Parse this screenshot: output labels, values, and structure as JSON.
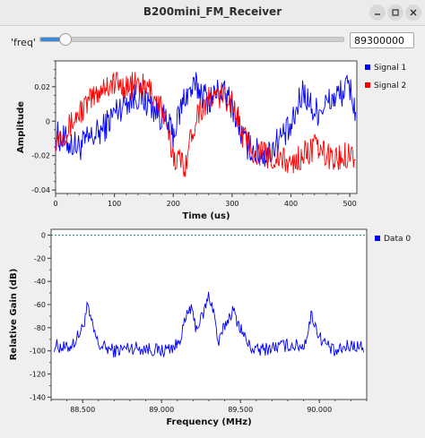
{
  "window": {
    "title": "B200mini_FM_Receiver",
    "buttons": {
      "minimize_icon": "minimize-icon",
      "maximize_icon": "maximize-icon",
      "close_icon": "close-icon"
    }
  },
  "controls": {
    "freq_label": "'freq'",
    "freq_value": "89300000",
    "slider_fraction": 0.08
  },
  "time_plot": {
    "chart_data": {
      "type": "line",
      "title": "",
      "xlabel": "Time (us)",
      "ylabel": "Amplitude",
      "xlim": [
        0,
        512
      ],
      "ylim": [
        -0.042,
        0.035
      ],
      "xticks": [
        0,
        100,
        200,
        300,
        400,
        500
      ],
      "yticks": [
        0.02,
        0,
        -0.02,
        -0.04
      ],
      "ytick_labels": [
        "0.02",
        "0",
        "-0.02",
        "-0.04"
      ],
      "legend_position": "right",
      "series": [
        {
          "name": "Signal 1",
          "color": "#0000ff",
          "x": [
            0,
            20,
            40,
            60,
            80,
            100,
            120,
            140,
            160,
            180,
            200,
            220,
            240,
            260,
            280,
            300,
            320,
            340,
            360,
            380,
            400,
            420,
            440,
            460,
            480,
            500,
            510
          ],
          "y": [
            -0.008,
            -0.012,
            -0.015,
            -0.01,
            -0.005,
            0.005,
            0.012,
            0.015,
            0.01,
            0.003,
            -0.008,
            0.015,
            0.02,
            0.012,
            0.018,
            0.01,
            -0.012,
            -0.018,
            -0.02,
            -0.01,
            -0.005,
            0.018,
            0.005,
            0.01,
            0.015,
            0.02,
            0.005
          ]
        },
        {
          "name": "Signal 2",
          "color": "#ff0000",
          "x": [
            0,
            20,
            40,
            60,
            80,
            100,
            120,
            140,
            160,
            180,
            200,
            220,
            240,
            260,
            280,
            300,
            320,
            340,
            360,
            380,
            400,
            420,
            440,
            460,
            480,
            500,
            510
          ],
          "y": [
            -0.01,
            -0.005,
            0.005,
            0.012,
            0.02,
            0.022,
            0.02,
            0.021,
            0.018,
            0.008,
            -0.02,
            -0.025,
            0.005,
            0.012,
            0.015,
            0.012,
            -0.01,
            -0.018,
            -0.02,
            -0.022,
            -0.025,
            -0.02,
            -0.015,
            -0.02,
            -0.022,
            -0.018,
            -0.02
          ]
        }
      ]
    }
  },
  "freq_plot": {
    "chart_data": {
      "type": "line",
      "title": "",
      "xlabel": "Frequency (MHz)",
      "ylabel": "Relative Gain (dB)",
      "xlim": [
        88.3,
        90.3
      ],
      "ylim": [
        -142,
        5
      ],
      "xticks": [
        88.5,
        89.0,
        89.5,
        90.0
      ],
      "xtick_labels": [
        "88.500",
        "89.000",
        "89.500",
        "90.000"
      ],
      "yticks": [
        0,
        -20,
        -40,
        -60,
        -80,
        -100,
        -120,
        -140
      ],
      "ytick_labels": [
        "0",
        "-20",
        "-40",
        "-60",
        "-80",
        "-100",
        "-120",
        "-140"
      ],
      "reference_line": 0,
      "legend_position": "right",
      "series": [
        {
          "name": "Data 0",
          "color": "#0000ff",
          "x": [
            88.32,
            88.4,
            88.45,
            88.5,
            88.53,
            88.56,
            88.6,
            88.7,
            88.8,
            88.9,
            89.0,
            89.1,
            89.15,
            89.18,
            89.22,
            89.26,
            89.3,
            89.33,
            89.36,
            89.4,
            89.45,
            89.5,
            89.55,
            89.6,
            89.7,
            89.8,
            89.9,
            89.93,
            89.95,
            90.0,
            90.1,
            90.15,
            90.2,
            90.28
          ],
          "y": [
            -95,
            -98,
            -92,
            -80,
            -62,
            -78,
            -95,
            -100,
            -97,
            -98,
            -100,
            -95,
            -75,
            -62,
            -80,
            -70,
            -52,
            -65,
            -95,
            -78,
            -65,
            -80,
            -95,
            -100,
            -97,
            -95,
            -96,
            -82,
            -68,
            -88,
            -102,
            -98,
            -95,
            -97
          ]
        }
      ]
    }
  }
}
